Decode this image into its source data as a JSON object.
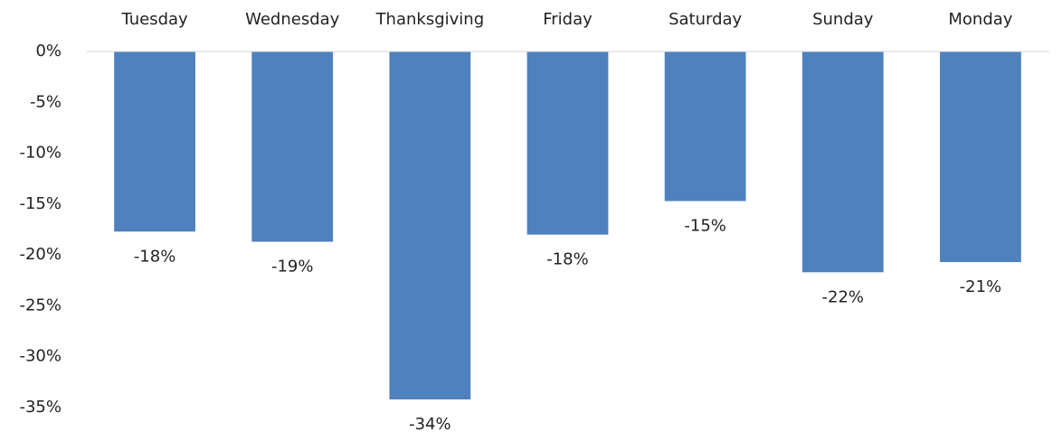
{
  "chart_data": {
    "type": "bar",
    "categories": [
      "Tuesday",
      "Wednesday",
      "Thanksgiving",
      "Friday",
      "Saturday",
      "Sunday",
      "Monday"
    ],
    "values": [
      -17.7,
      -18.7,
      -34.2,
      -18.0,
      -14.7,
      -21.7,
      -20.7
    ],
    "value_labels": [
      "-18%",
      "-19%",
      "-34%",
      "-18%",
      "-15%",
      "-22%",
      "-21%"
    ],
    "color": "#4f81bd",
    "ylim": [
      -35,
      0
    ],
    "yticks": [
      {
        "value": 0,
        "label": "0%"
      },
      {
        "value": -5,
        "label": "-5%"
      },
      {
        "value": -10,
        "label": "-10%"
      },
      {
        "value": -15,
        "label": "-15%"
      },
      {
        "value": -20,
        "label": "-20%"
      },
      {
        "value": -25,
        "label": "-25%"
      },
      {
        "value": -30,
        "label": "-30%"
      },
      {
        "value": -35,
        "label": "-35%"
      }
    ],
    "grid": false
  }
}
